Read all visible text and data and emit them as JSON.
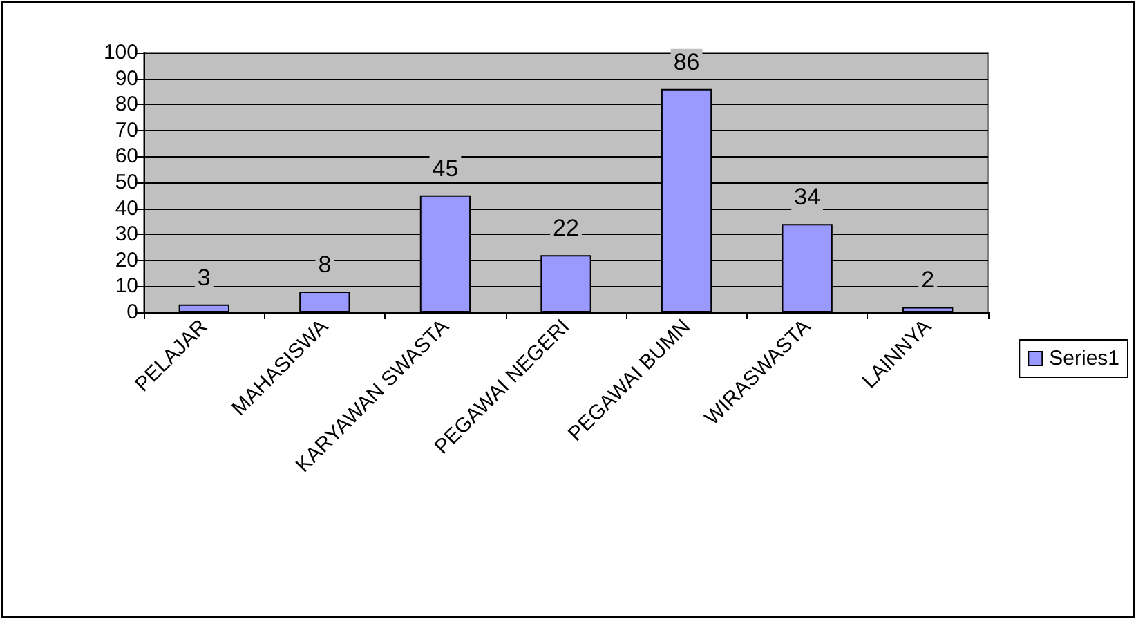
{
  "chart_data": {
    "type": "bar",
    "categories": [
      "PELAJAR",
      "MAHASISWA",
      "KARYAWAN SWASTA",
      "PEGAWAI NEGERI",
      "PEGAWAI BUMN",
      "WIRASWASTA",
      "LAINNYA"
    ],
    "series": [
      {
        "name": "Series1",
        "color": "#9999ff",
        "values": [
          3,
          8,
          45,
          22,
          86,
          34,
          2
        ]
      }
    ],
    "ylim": [
      0,
      100
    ],
    "yticks": [
      0,
      10,
      20,
      30,
      40,
      50,
      60,
      70,
      80,
      90,
      100
    ],
    "grid": "y",
    "legend": "right",
    "data_labels": true
  }
}
